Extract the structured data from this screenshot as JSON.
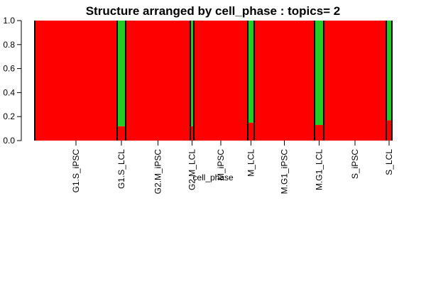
{
  "chart_data": {
    "type": "bar",
    "title": "Structure arranged by cell_phase : topics= 2",
    "xlabel": "cell_phase",
    "ylabel": "",
    "ylim": [
      0,
      1
    ],
    "yticks": [
      "0.0",
      "0.2",
      "0.4",
      "0.6",
      "0.8",
      "1.0"
    ],
    "categories": [
      "G1.S_iPSC",
      "G1.S_LCL",
      "G2.M_iPSC",
      "G2.M_LCL",
      "M_iPSC",
      "M_LCL",
      "M.G1_iPSC",
      "M.G1_LCL",
      "S_iPSC",
      "S_LCL"
    ],
    "series": [
      {
        "color": "#ff0000",
        "values": [
          1.0,
          0.12,
          1.0,
          0.12,
          1.0,
          0.15,
          1.0,
          0.13,
          1.0,
          0.17
        ]
      },
      {
        "color": "#22cc22",
        "values": [
          0.0,
          0.88,
          0.0,
          0.88,
          0.0,
          0.85,
          0.0,
          0.87,
          0.0,
          0.83
        ]
      }
    ],
    "stacked": true,
    "grid": false,
    "legend": false
  }
}
